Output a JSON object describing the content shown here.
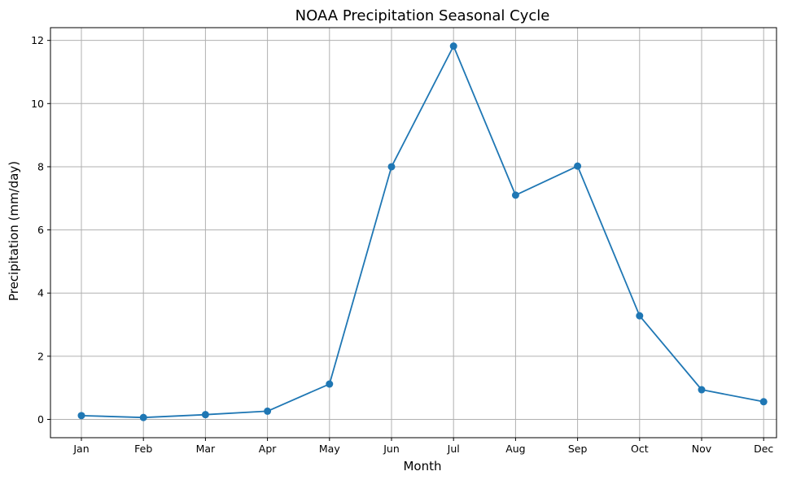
{
  "chart_data": {
    "type": "line",
    "title": "NOAA Precipitation Seasonal Cycle",
    "xlabel": "Month",
    "ylabel": "Precipitation (mm/day)",
    "categories": [
      "Jan",
      "Feb",
      "Mar",
      "Apr",
      "May",
      "Jun",
      "Jul",
      "Aug",
      "Sep",
      "Oct",
      "Nov",
      "Dec"
    ],
    "series": [
      {
        "values": [
          0.12,
          0.06,
          0.15,
          0.26,
          1.12,
          8.0,
          11.82,
          7.1,
          8.02,
          3.28,
          0.94,
          0.56
        ],
        "color": "#1f77b4",
        "marker": "circle"
      }
    ],
    "yticks": [
      0,
      2,
      4,
      6,
      8,
      10,
      12
    ],
    "ylim": [
      -0.58,
      12.42
    ],
    "grid": true,
    "grid_color": "#b0b0b0"
  }
}
